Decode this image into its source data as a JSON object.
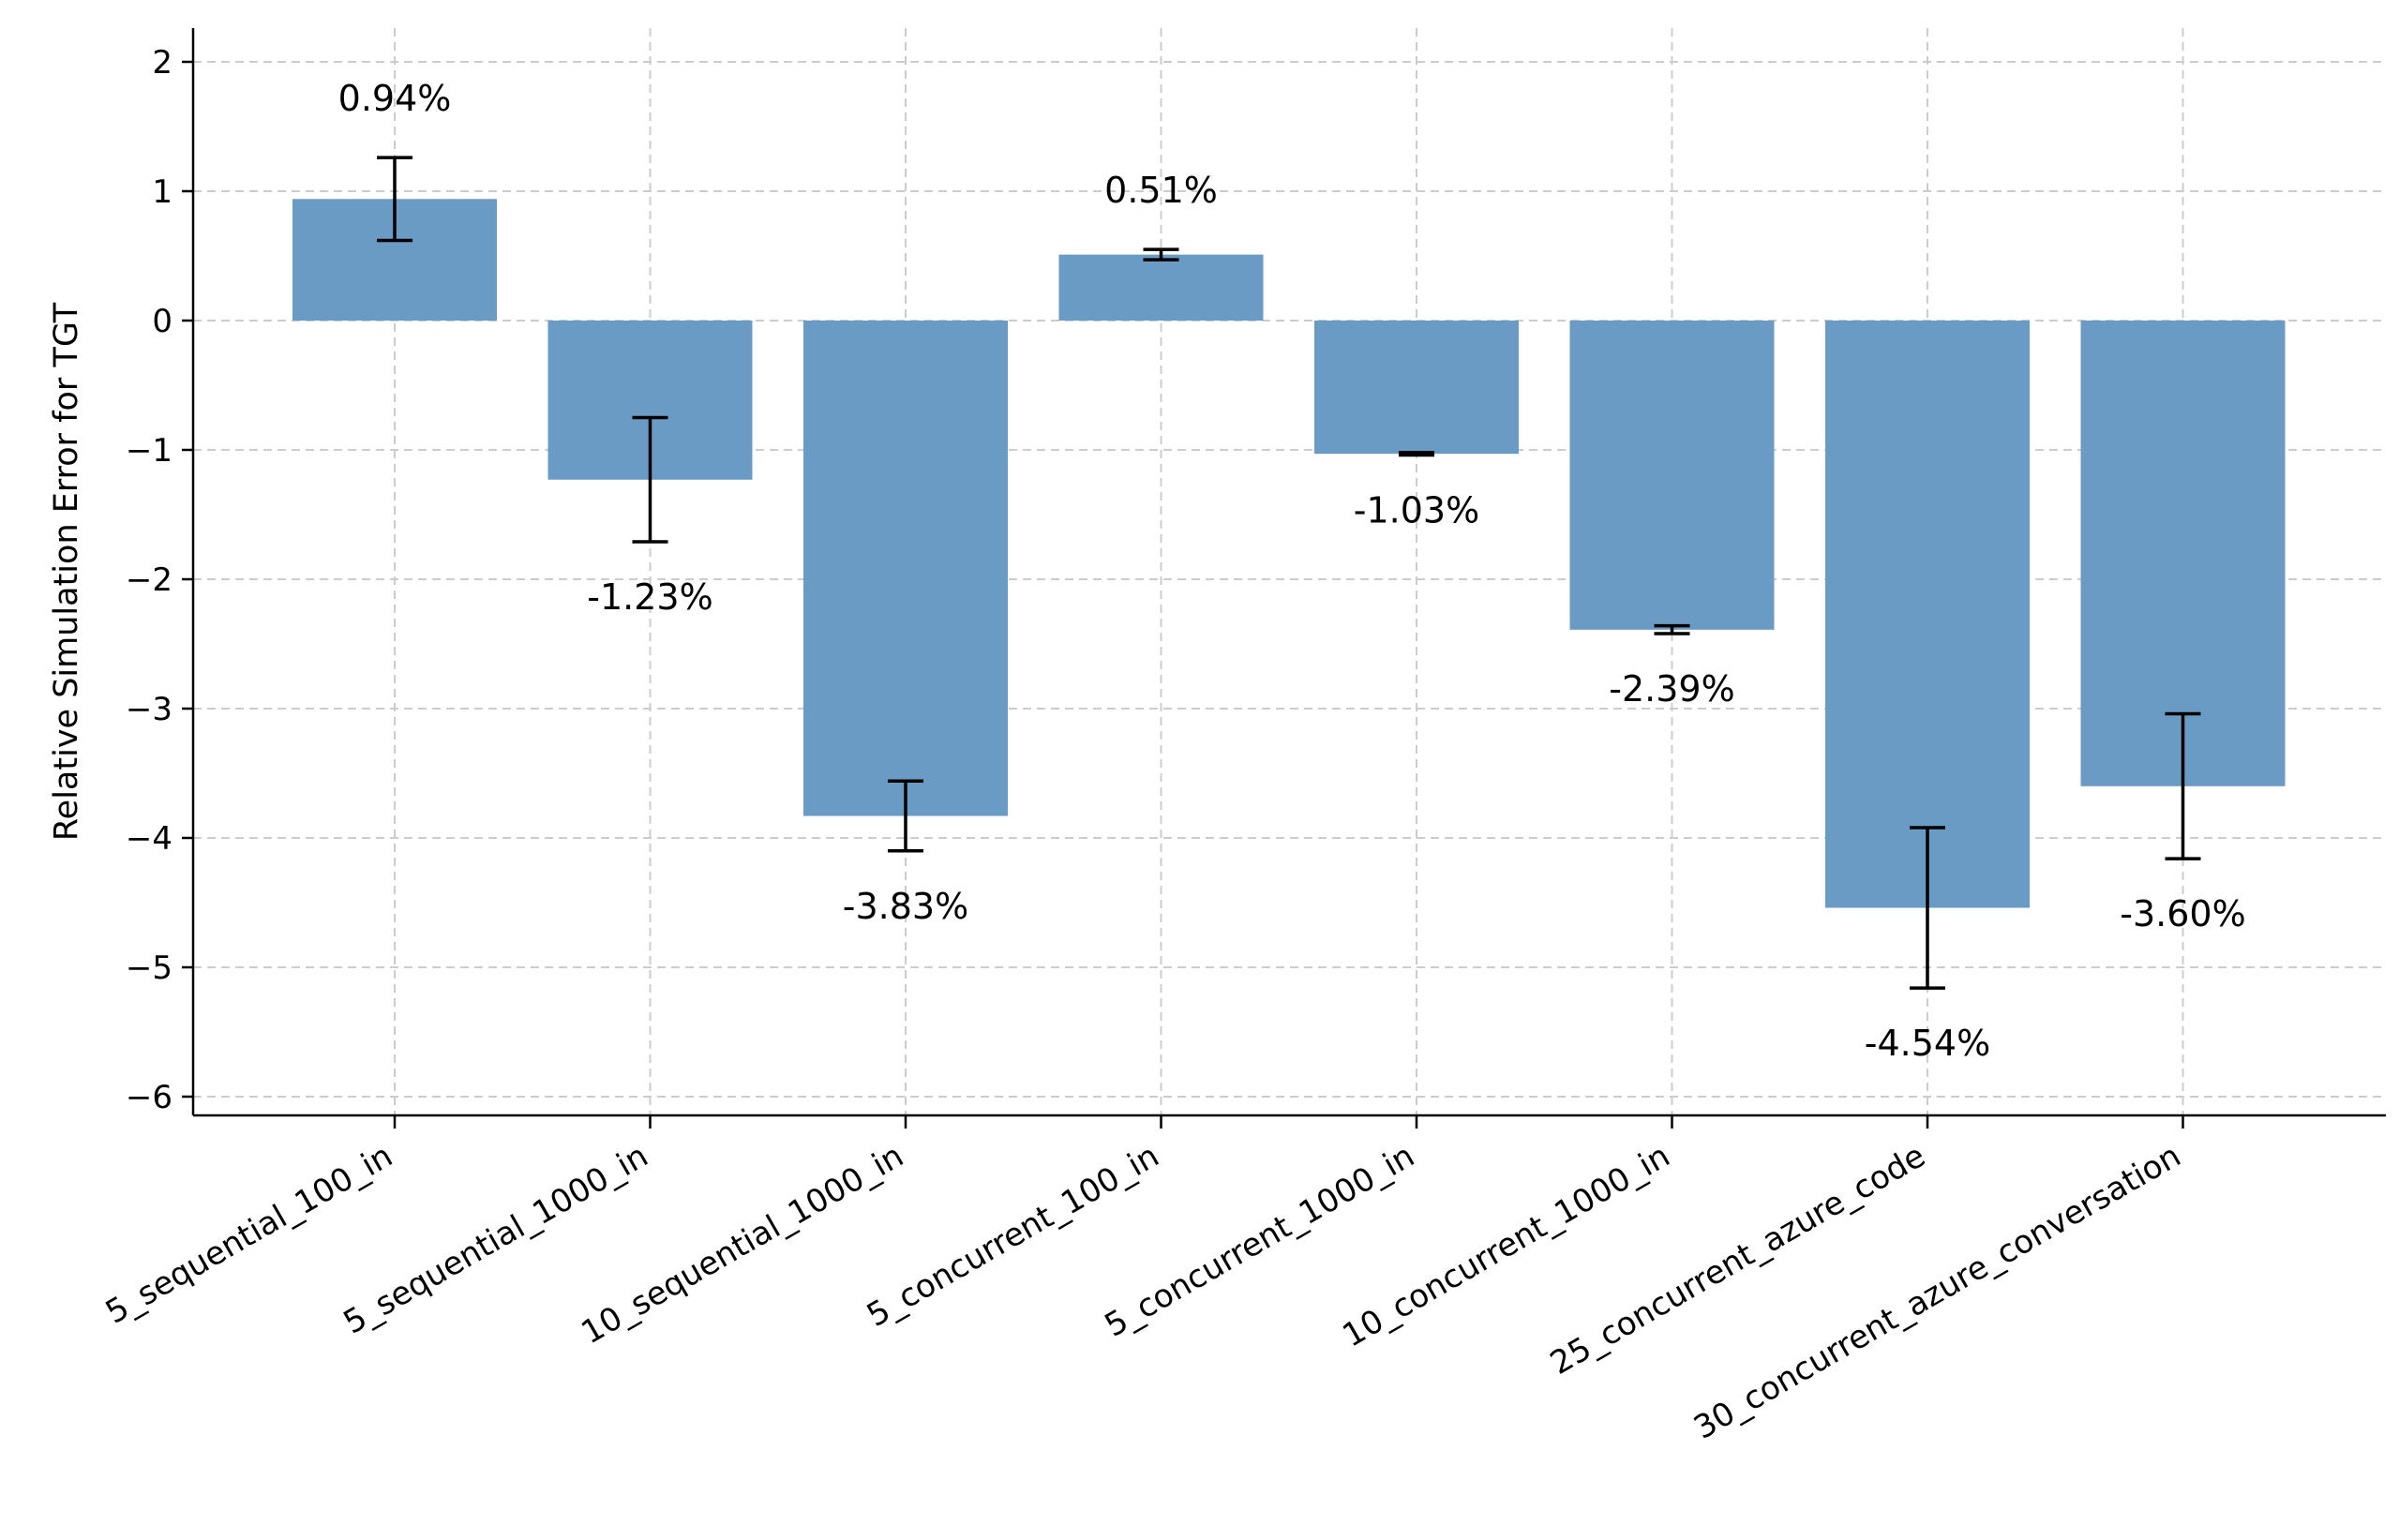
{
  "chart_data": {
    "type": "bar",
    "title": "",
    "xlabel": "",
    "ylabel": "Relative Simulation Error for TGT",
    "ylim": [
      -6.2,
      2.25
    ],
    "yticks": [
      2,
      1,
      0,
      -1,
      -2,
      -3,
      -4,
      -5,
      -6
    ],
    "ytick_labels": [
      "2",
      "1",
      "0",
      "−1",
      "−2",
      "−3",
      "−4",
      "−5",
      "−6"
    ],
    "grid": true,
    "bar_color": "#6a9bc4",
    "categories": [
      "5_sequential_100_in",
      "5_sequential_1000_in",
      "10_sequential_1000_in",
      "5_concurrent_100_in",
      "5_concurrent_1000_in",
      "10_concurrent_1000_in",
      "25_concurrent_azure_code",
      "30_concurrent_azure_conversation"
    ],
    "values": [
      0.94,
      -1.23,
      -3.83,
      0.51,
      -1.03,
      -2.39,
      -4.54,
      -3.6
    ],
    "errors": [
      0.32,
      0.48,
      0.27,
      0.04,
      0.01,
      0.03,
      0.62,
      0.56
    ],
    "value_labels": [
      "0.94%",
      "-1.23%",
      "-3.83%",
      "0.51%",
      "-1.03%",
      "-2.39%",
      "-4.54%",
      "-3.60%"
    ]
  }
}
